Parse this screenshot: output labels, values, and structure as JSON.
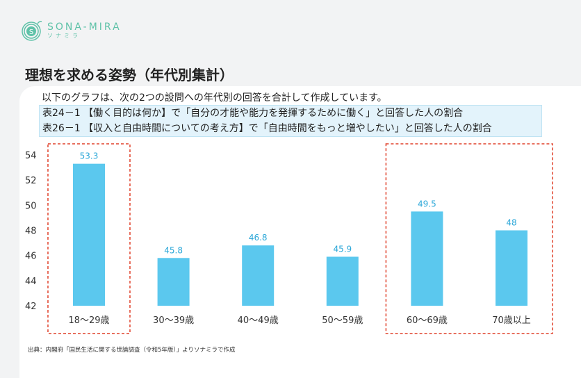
{
  "logo": {
    "en": "SONA-MIRA",
    "ja": "ソナミラ",
    "mark": "S"
  },
  "title": "理想を求める姿勢（年代別集計）",
  "intro": "以下のグラフは、次の2つの設問への年代別の回答を合計して作成しています。",
  "notes": [
    "表24－1 【働く目的は何か】で「自分の才能や能力を発揮するために働く」と回答した人の割合",
    "表26－1 【収入と自由時間についての考え方】で「自由時間をもっと増やしたい」と回答した人の割合"
  ],
  "source": "出典：内閣府「国民生活に関する世論調査（令和5年版）」よりソナミラで作成",
  "colors": {
    "bar": "#5bc8ee",
    "value_label": "#2ba7d8",
    "highlight_box": "#e0402a",
    "logo": "#5fc2a8"
  },
  "chart_data": {
    "type": "bar",
    "categories": [
      "18～29歳",
      "30～39歳",
      "40～49歳",
      "50～59歳",
      "60～69歳",
      "70歳以上"
    ],
    "values": [
      53.3,
      45.8,
      46.8,
      45.9,
      49.5,
      48
    ],
    "value_labels": [
      "53.3",
      "45.8",
      "46.8",
      "45.9",
      "49.5",
      "48"
    ],
    "ylim": [
      42,
      54
    ],
    "yticks": [
      "42",
      "44",
      "46",
      "48",
      "50",
      "52",
      "54"
    ],
    "grid": false,
    "highlighted_groups": [
      [
        "18～29歳"
      ],
      [
        "60～69歳",
        "70歳以上"
      ]
    ]
  }
}
